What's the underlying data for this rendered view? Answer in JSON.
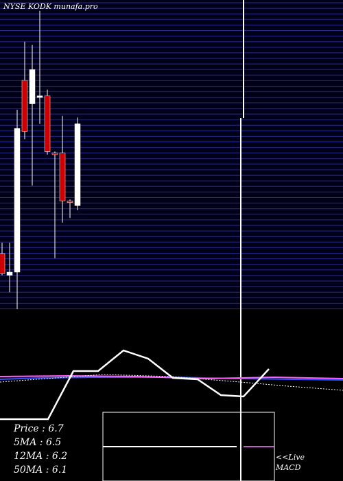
{
  "chart_data": {
    "type": "candlestick",
    "title": "NYSE KODK munafa.pro",
    "ylim": [
      5.5,
      7.5
    ],
    "up_color": "#ffffff",
    "down_color": "#cc0000",
    "open": [
      5.86,
      5.72,
      5.74,
      6.98,
      6.83,
      6.87,
      6.88,
      6.51,
      6.51,
      6.2,
      6.17
    ],
    "high": [
      5.93,
      5.93,
      6.79,
      7.23,
      7.21,
      7.43,
      6.92,
      6.52,
      6.75,
      6.21,
      6.74
    ],
    "low": [
      5.72,
      5.61,
      5.5,
      6.6,
      6.3,
      6.7,
      6.5,
      5.83,
      6.06,
      6.09,
      6.14
    ],
    "close": [
      5.73,
      5.74,
      6.67,
      6.65,
      7.05,
      6.88,
      6.52,
      6.5,
      6.2,
      6.19,
      6.7
    ],
    "stats": [
      "Price   : 6.7",
      "5MA : 6.5",
      "12MA : 6.2",
      "50MA : 6.1"
    ],
    "live": "<<Live",
    "macd": "MACD"
  }
}
